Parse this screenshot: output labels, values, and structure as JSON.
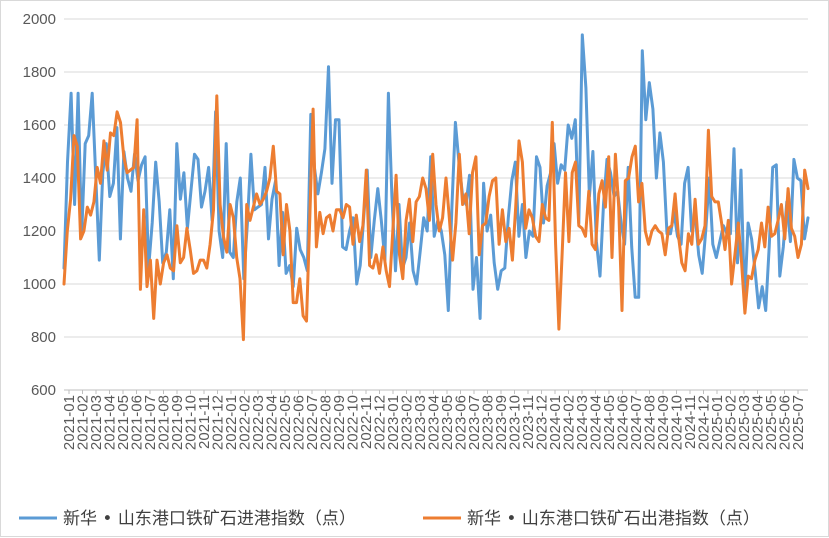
{
  "chart_data": {
    "type": "line",
    "title": "",
    "xlabel": "",
    "ylabel": "",
    "ylim": [
      600,
      2000
    ],
    "yticks": [
      600,
      800,
      1000,
      1200,
      1400,
      1600,
      1800,
      2000
    ],
    "ytick_labels": [
      "600",
      "800",
      "1000",
      "1200",
      "1400",
      "1600",
      "1800",
      "2000"
    ],
    "grid": true,
    "legend_position": "bottom",
    "x_month_labels": [
      "2021-01",
      "2021-02",
      "2021-03",
      "2021-04",
      "2021-05",
      "2021-06",
      "2021-07",
      "2021-08",
      "2021-09",
      "2021-10",
      "2021-11",
      "2021-12",
      "2022-01",
      "2022-02",
      "2022-03",
      "2022-04",
      "2022-05",
      "2022-06",
      "2022-07",
      "2022-08",
      "2022-09",
      "2022-10",
      "2022-11",
      "2022-12",
      "2023-01",
      "2023-02",
      "2023-03",
      "2023-04",
      "2023-05",
      "2023-06",
      "2023-07",
      "2023-08",
      "2023-09",
      "2023-10",
      "2023-11",
      "2023-12",
      "2024-01",
      "2024-02",
      "2024-03",
      "2024-04",
      "2024-05",
      "2024-06",
      "2024-07",
      "2024-08",
      "2024-09",
      "2024-10",
      "2024-11",
      "2024-12",
      "2025-01",
      "2025-02",
      "2025-03",
      "2025-04",
      "2025-05",
      "2025-06",
      "2025-07"
    ],
    "series": [
      {
        "name": "新华 • 山东港口铁矿石进港指数（点）",
        "color": "#5b9bd5",
        "values": [
          1060,
          1460,
          1720,
          1300,
          1720,
          1180,
          1530,
          1560,
          1720,
          1410,
          1090,
          1420,
          1530,
          1330,
          1380,
          1590,
          1170,
          1500,
          1400,
          1350,
          1490,
          1390,
          1450,
          1480,
          1060,
          1230,
          1460,
          1310,
          1080,
          1120,
          1280,
          1020,
          1530,
          1320,
          1420,
          1210,
          1350,
          1490,
          1470,
          1290,
          1350,
          1440,
          1240,
          1650,
          1200,
          1100,
          1530,
          1120,
          1100,
          1310,
          1400,
          1020,
          1230,
          1490,
          1280,
          1290,
          1300,
          1440,
          1170,
          1320,
          1390,
          1070,
          1270,
          1040,
          1070,
          990,
          1210,
          1130,
          1100,
          1050,
          1640,
          1440,
          1340,
          1420,
          1510,
          1820,
          1380,
          1620,
          1620,
          1140,
          1130,
          1200,
          1250,
          1000,
          1070,
          1250,
          1430,
          1100,
          1240,
          1360,
          1240,
          1090,
          1720,
          1330,
          1050,
          1300,
          1060,
          1100,
          1230,
          1050,
          1000,
          1120,
          1250,
          1200,
          1480,
          1180,
          1240,
          1200,
          1110,
          900,
          1290,
          1610,
          1460,
          1340,
          1300,
          1410,
          980,
          1100,
          870,
          1380,
          1200,
          1260,
          1080,
          980,
          1050,
          1060,
          1250,
          1390,
          1460,
          1180,
          1300,
          1100,
          1200,
          1180,
          1480,
          1440,
          1230,
          1370,
          1420,
          1530,
          1380,
          1450,
          1430,
          1600,
          1550,
          1620,
          1230,
          1940,
          1740,
          1330,
          1500,
          1160,
          1030,
          1300,
          1470,
          1420,
          1330,
          1350,
          1230,
          1150,
          1440,
          1140,
          950,
          950,
          1880,
          1620,
          1760,
          1660,
          1400,
          1570,
          1460,
          1190,
          1190,
          1270,
          1180,
          1150,
          1380,
          1440,
          1200,
          1260,
          1110,
          1040,
          1200,
          1400,
          1150,
          1100,
          1160,
          1220,
          1190,
          1190,
          1510,
          1080,
          1430,
          930,
          1230,
          1170,
          1050,
          910,
          990,
          900,
          1140,
          1440,
          1450,
          1030,
          1140,
          1310,
          1160,
          1470,
          1400,
          1390,
          1170,
          1250
        ]
      },
      {
        "name": "新华 • 山东港口铁矿石出港指数（点）",
        "color": "#ed7d31",
        "values": [
          1000,
          1200,
          1320,
          1560,
          1520,
          1170,
          1200,
          1290,
          1260,
          1310,
          1440,
          1380,
          1540,
          1430,
          1570,
          1560,
          1650,
          1610,
          1480,
          1420,
          1430,
          1440,
          1620,
          980,
          1280,
          990,
          1090,
          870,
          1090,
          1000,
          1080,
          1110,
          1060,
          1050,
          1220,
          1080,
          1100,
          1210,
          1130,
          1040,
          1050,
          1090,
          1090,
          1060,
          1150,
          1280,
          1710,
          1300,
          1180,
          1120,
          1300,
          1250,
          1100,
          1020,
          790,
          1300,
          1240,
          1290,
          1340,
          1300,
          1320,
          1350,
          1400,
          1520,
          1350,
          1340,
          1110,
          1300,
          1200,
          930,
          930,
          1020,
          880,
          860,
          1250,
          1660,
          1140,
          1270,
          1190,
          1250,
          1260,
          1200,
          1280,
          1280,
          1250,
          1300,
          1290,
          1150,
          1260,
          1160,
          1220,
          1430,
          1070,
          1060,
          1110,
          1040,
          1140,
          1050,
          990,
          1200,
          1410,
          1110,
          1020,
          1240,
          1320,
          1160,
          1310,
          1330,
          1400,
          1360,
          1240,
          1490,
          1300,
          1200,
          1250,
          1400,
          1250,
          1090,
          1230,
          1490,
          1300,
          1340,
          1190,
          1420,
          1480,
          1110,
          1220,
          1230,
          1330,
          1390,
          1400,
          1150,
          1280,
          1160,
          1210,
          1090,
          1290,
          1540,
          1460,
          1210,
          1280,
          1250,
          1180,
          1160,
          1300,
          1250,
          1240,
          1610,
          1150,
          830,
          1120,
          1420,
          1160,
          1420,
          1460,
          1220,
          1210,
          1180,
          1350,
          1150,
          1130,
          1340,
          1390,
          1290,
          1480,
          1100,
          1490,
          1290,
          900,
          1390,
          1400,
          1480,
          1520,
          1310,
          1380,
          1200,
          1150,
          1200,
          1220,
          1200,
          1190,
          1110,
          1210,
          1220,
          1340,
          1180,
          1080,
          1050,
          1190,
          1150,
          1320,
          1150,
          1170,
          1220,
          1580,
          1330,
          1310,
          1310,
          1230,
          1130,
          1240,
          1000,
          1110,
          1230,
          1080,
          890,
          1030,
          1020,
          1090,
          1130,
          1230,
          1140,
          1290,
          1180,
          1190,
          1240,
          1300,
          1170,
          1360,
          1210,
          1180,
          1100,
          1150,
          1430,
          1360
        ]
      }
    ]
  }
}
